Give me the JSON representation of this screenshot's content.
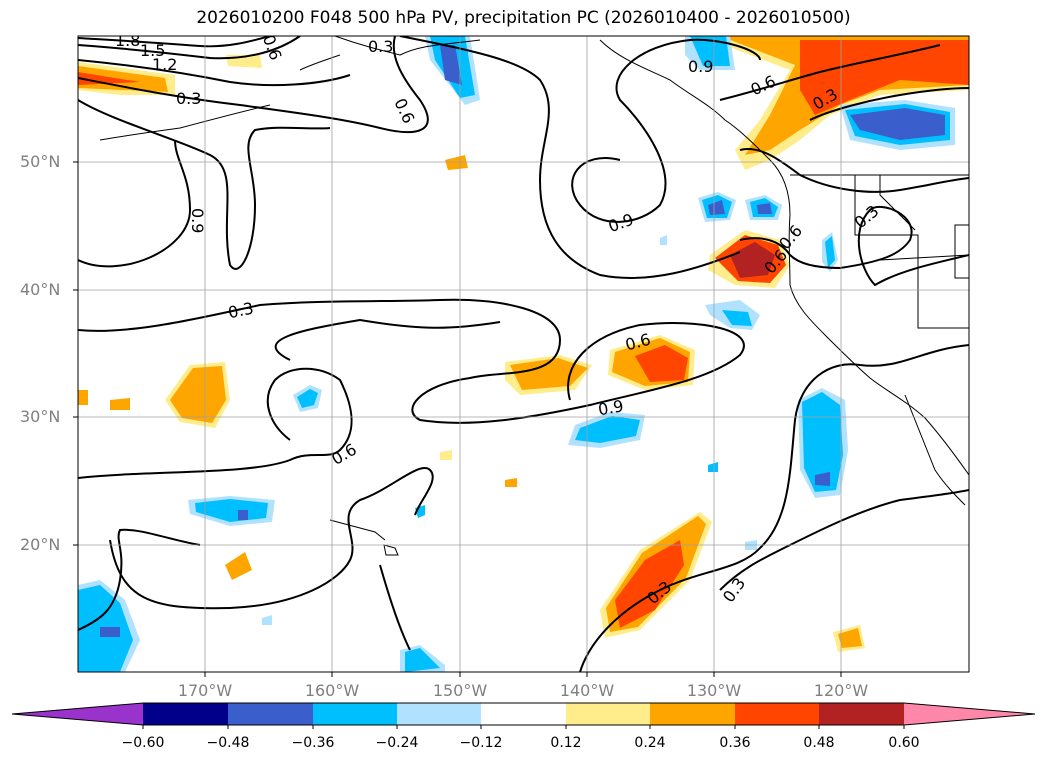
{
  "title": "2026010200 F048 500 hPa PV, precipitation PC (2026010400 - 2026010500)",
  "map": {
    "lat_labels": [
      "50°N",
      "40°N",
      "30°N",
      "20°N"
    ],
    "lon_labels": [
      "170°W",
      "160°W",
      "150°W",
      "140°W",
      "130°W",
      "120°W"
    ],
    "contour_labels": [
      "1.8",
      "1.5",
      "1.2",
      "0.3",
      "0.9",
      "0.6",
      "0.3",
      "0.6",
      "0.9",
      "0.6",
      "0.3",
      "0.9",
      "0.6",
      "0.3",
      "0.6",
      "0.6",
      "0.9",
      "0.3",
      "0.6",
      "0.3",
      "0.3"
    ]
  },
  "colorbar": {
    "colors": [
      "#9933cc",
      "#00008b",
      "#3a5fcd",
      "#00bfff",
      "#b0e2ff",
      "#ffffff",
      "#ffec8b",
      "#ffa500",
      "#ff4500",
      "#b22222",
      "#ff88aa"
    ],
    "tick_labels": [
      "−0.60",
      "−0.48",
      "−0.36",
      "−0.24",
      "−0.12",
      "0.12",
      "0.24",
      "0.36",
      "0.48",
      "0.60"
    ]
  }
}
